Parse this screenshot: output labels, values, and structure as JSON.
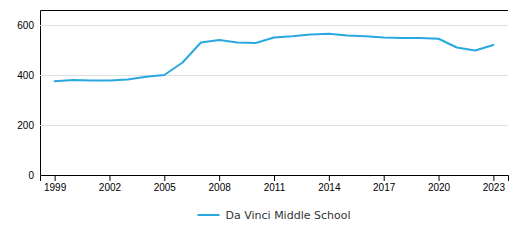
{
  "chart_data": {
    "type": "line",
    "x": [
      1999,
      2000,
      2001,
      2002,
      2003,
      2004,
      2005,
      2006,
      2007,
      2008,
      2009,
      2010,
      2011,
      2012,
      2013,
      2014,
      2015,
      2016,
      2017,
      2018,
      2019,
      2020,
      2021,
      2022,
      2023
    ],
    "series": [
      {
        "name": "Da Vinci Middle School",
        "color": "#29a8e0",
        "values": [
          375,
          380,
          378,
          378,
          382,
          393,
          400,
          450,
          530,
          540,
          530,
          528,
          550,
          555,
          562,
          565,
          558,
          555,
          550,
          548,
          548,
          545,
          510,
          498,
          520
        ]
      }
    ],
    "xlim": [
      1998.2,
      2023.8
    ],
    "xticks": [
      1999,
      2002,
      2005,
      2008,
      2011,
      2014,
      2017,
      2020,
      2023
    ],
    "ylim": [
      0,
      660
    ],
    "yticks": [
      0,
      200,
      400,
      600
    ],
    "grid": true,
    "legend": "bottom"
  }
}
